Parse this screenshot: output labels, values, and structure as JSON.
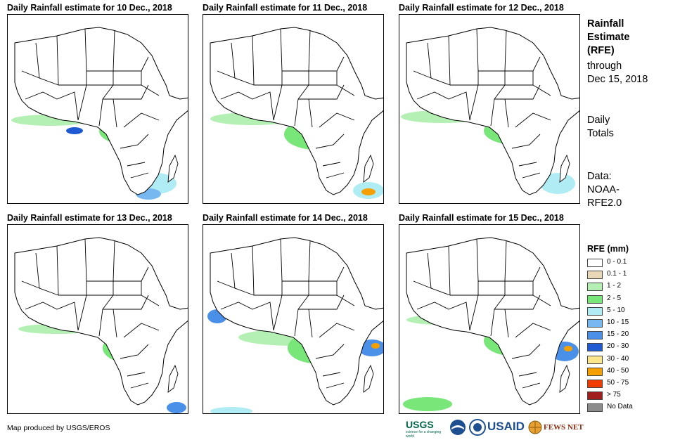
{
  "panels": [
    {
      "title": "Daily Rainfall estimate for 10 Dec., 2018"
    },
    {
      "title": "Daily Rainfall estimate for 11 Dec., 2018"
    },
    {
      "title": "Daily Rainfall estimate for 12 Dec., 2018"
    },
    {
      "title": "Daily Rainfall estimate for 13 Dec., 2018"
    },
    {
      "title": "Daily Rainfall estimate for 14 Dec., 2018"
    },
    {
      "title": "Daily Rainfall estimate for 15 Dec., 2018"
    }
  ],
  "sidebar": {
    "heading_line1": "Rainfall",
    "heading_line2": "Estimate",
    "heading_line3": "(RFE)",
    "through_line1": "through",
    "through_line2": "Dec 15, 2018",
    "totals_line1": "Daily",
    "totals_line2": "Totals",
    "data_line1": "Data:",
    "data_line2": "NOAA-",
    "data_line3": "RFE2.0"
  },
  "legend": {
    "title": "RFE (mm)",
    "items": [
      {
        "label": "0 - 0.1",
        "color": "#ffffff"
      },
      {
        "label": "0.1 - 1",
        "color": "#e8d8b8"
      },
      {
        "label": "1 - 2",
        "color": "#b4f0b4"
      },
      {
        "label": "2 - 5",
        "color": "#78e678"
      },
      {
        "label": "5 - 10",
        "color": "#b0ecf4"
      },
      {
        "label": "10 - 15",
        "color": "#78b8f0"
      },
      {
        "label": "15 - 20",
        "color": "#4a90e8"
      },
      {
        "label": "20 - 30",
        "color": "#1e5ad2"
      },
      {
        "label": "30 - 40",
        "color": "#fae68c"
      },
      {
        "label": "40 - 50",
        "color": "#f5a000"
      },
      {
        "label": "50 - 75",
        "color": "#f03c00"
      },
      {
        "label": "> 75",
        "color": "#a01e1e"
      },
      {
        "label": "No Data",
        "color": "#8c8c8c"
      }
    ]
  },
  "credit": "Map produced by USGS/EROS",
  "logos": {
    "usgs": "USGS",
    "usgs_tagline": "science for a changing world",
    "usaid": "USAID",
    "fewsnet": "FEWS NET"
  }
}
